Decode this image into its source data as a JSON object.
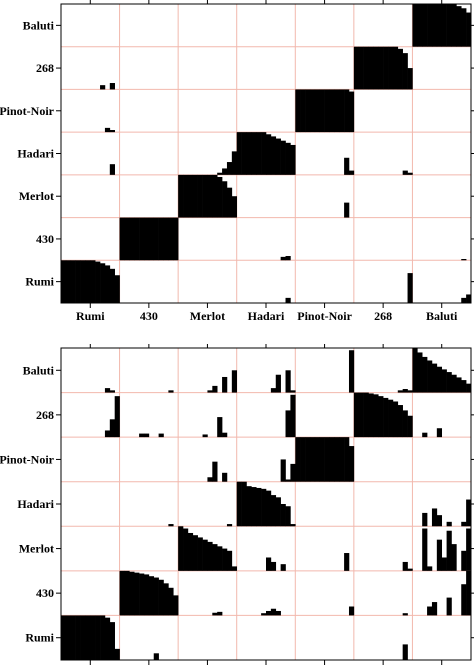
{
  "chart_data": [
    {
      "type": "heatmap",
      "title": "",
      "xlabel": "",
      "ylabel": "",
      "categories": [
        "Rumi",
        "430",
        "Merlot",
        "Hadari",
        "Pinot-Noir",
        "268",
        "Baluti"
      ],
      "grid": true,
      "bins_per_cell": 12,
      "cells": [
        {
          "row": "Rumi",
          "col": "Rumi",
          "values": [
            1,
            1,
            1,
            1,
            1,
            1,
            1,
            0.97,
            0.93,
            0.88,
            0.8,
            0.65
          ]
        },
        {
          "row": "Rumi",
          "col": "Hadari",
          "values": [
            0,
            0,
            0,
            0,
            0,
            0,
            0,
            0,
            0,
            0,
            0.12,
            0
          ]
        },
        {
          "row": "Rumi",
          "col": "Baluti",
          "values": [
            0,
            0,
            0,
            0,
            0,
            0,
            0,
            0,
            0,
            0,
            0.12,
            0.2
          ]
        },
        {
          "row": "Rumi",
          "col": "268",
          "values": [
            0,
            0,
            0,
            0,
            0,
            0,
            0,
            0,
            0,
            0,
            0,
            0.7
          ]
        },
        {
          "row": "430",
          "col": "430",
          "values": [
            1,
            1,
            1,
            1,
            1,
            1,
            1,
            1,
            1,
            1,
            1,
            1
          ]
        },
        {
          "row": "430",
          "col": "Hadari",
          "values": [
            0,
            0,
            0,
            0,
            0,
            0,
            0,
            0,
            0,
            0.08,
            0.1,
            0
          ]
        },
        {
          "row": "430",
          "col": "Baluti",
          "values": [
            0,
            0,
            0,
            0,
            0,
            0,
            0,
            0,
            0,
            0,
            0.03,
            0
          ]
        },
        {
          "row": "Merlot",
          "col": "Merlot",
          "values": [
            1,
            1,
            1,
            1,
            1,
            1,
            1,
            1,
            0.95,
            0.85,
            0.7,
            0.5
          ]
        },
        {
          "row": "Merlot",
          "col": "Pinot-Noir",
          "values": [
            0,
            0,
            0,
            0,
            0,
            0,
            0,
            0,
            0,
            0,
            0.35,
            0
          ]
        },
        {
          "row": "Hadari",
          "col": "Hadari",
          "values": [
            1,
            1,
            1,
            1,
            1,
            1,
            0.95,
            0.9,
            0.85,
            0.8,
            0.75,
            0.7
          ]
        },
        {
          "row": "Hadari",
          "col": "Merlot",
          "values": [
            0,
            0,
            0,
            0,
            0,
            0,
            0,
            0,
            0.05,
            0.15,
            0.3,
            0.55
          ]
        },
        {
          "row": "Hadari",
          "col": "Rumi",
          "values": [
            0,
            0,
            0,
            0,
            0,
            0,
            0,
            0,
            0,
            0,
            0.25,
            0
          ]
        },
        {
          "row": "Hadari",
          "col": "Pinot-Noir",
          "values": [
            0,
            0,
            0,
            0,
            0,
            0,
            0,
            0,
            0,
            0,
            0.4,
            0.1
          ]
        },
        {
          "row": "Hadari",
          "col": "268",
          "values": [
            0,
            0,
            0,
            0,
            0,
            0,
            0,
            0,
            0,
            0,
            0.1,
            0.05
          ]
        },
        {
          "row": "Pinot-Noir",
          "col": "Pinot-Noir",
          "values": [
            1,
            1,
            1,
            1,
            1,
            1,
            1,
            1,
            1,
            1,
            1,
            0.95
          ]
        },
        {
          "row": "Pinot-Noir",
          "col": "Rumi",
          "values": [
            0,
            0,
            0,
            0,
            0,
            0,
            0,
            0,
            0,
            0.1,
            0.05,
            0
          ]
        },
        {
          "row": "268",
          "col": "268",
          "values": [
            1,
            1,
            1,
            1,
            1,
            1,
            1,
            1,
            1,
            0.95,
            0.85,
            0.5
          ]
        },
        {
          "row": "268",
          "col": "Rumi",
          "values": [
            0,
            0,
            0,
            0,
            0,
            0,
            0,
            0,
            0.1,
            0,
            0.15,
            0
          ]
        },
        {
          "row": "Baluti",
          "col": "Baluti",
          "values": [
            1,
            1,
            1,
            1,
            1,
            1,
            1,
            1,
            1,
            0.95,
            0.9,
            0.8
          ]
        }
      ]
    },
    {
      "type": "heatmap",
      "title": "",
      "xlabel": "",
      "ylabel": "",
      "categories": [
        "Rumi",
        "430",
        "Merlot",
        "Hadari",
        "Pinot-Noir",
        "268",
        "Baluti"
      ],
      "grid": true,
      "bins_per_cell": 12,
      "cells": [
        {
          "row": "Rumi",
          "col": "Rumi",
          "values": [
            1,
            1,
            1,
            1,
            1,
            1,
            1,
            1,
            1,
            0.95,
            0.85,
            0.25
          ]
        },
        {
          "row": "Rumi",
          "col": "430",
          "values": [
            0,
            0,
            0,
            0,
            0,
            0,
            0,
            0.15,
            0,
            0,
            0,
            0
          ]
        },
        {
          "row": "Rumi",
          "col": "268",
          "values": [
            0,
            0,
            0,
            0,
            0,
            0,
            0,
            0,
            0,
            0,
            0.35,
            0
          ]
        },
        {
          "row": "430",
          "col": "430",
          "values": [
            1,
            1,
            0.98,
            0.96,
            0.94,
            0.92,
            0.88,
            0.85,
            0.8,
            0.72,
            0.62,
            0.45
          ]
        },
        {
          "row": "430",
          "col": "Merlot",
          "values": [
            0,
            0,
            0,
            0,
            0,
            0,
            0,
            0.06,
            0.08,
            0,
            0,
            0
          ]
        },
        {
          "row": "430",
          "col": "Hadari",
          "values": [
            0,
            0,
            0,
            0,
            0,
            0.05,
            0.1,
            0.15,
            0.1,
            0,
            0,
            0
          ]
        },
        {
          "row": "430",
          "col": "Pinot-Noir",
          "values": [
            0,
            0,
            0,
            0,
            0,
            0,
            0,
            0,
            0,
            0,
            0,
            0.2
          ]
        },
        {
          "row": "430",
          "col": "268",
          "values": [
            0,
            0,
            0,
            0,
            0,
            0,
            0,
            0,
            0,
            0,
            0.05,
            0
          ]
        },
        {
          "row": "430",
          "col": "Baluti",
          "values": [
            0,
            0,
            0,
            0.2,
            0.3,
            0,
            0,
            0.4,
            0,
            0,
            0.7,
            1
          ]
        },
        {
          "row": "Merlot",
          "col": "Merlot",
          "values": [
            1,
            0.95,
            0.85,
            0.8,
            0.75,
            0.7,
            0.65,
            0.6,
            0.55,
            0.5,
            0.45,
            0.1
          ]
        },
        {
          "row": "Merlot",
          "col": "Hadari",
          "values": [
            0,
            0,
            0,
            0,
            0,
            0,
            0.3,
            0.2,
            0,
            0.15,
            0,
            0
          ]
        },
        {
          "row": "Merlot",
          "col": "Pinot-Noir",
          "values": [
            0,
            0,
            0,
            0,
            0,
            0,
            0,
            0,
            0,
            0,
            0.4,
            0
          ]
        },
        {
          "row": "Merlot",
          "col": "268",
          "values": [
            0,
            0,
            0,
            0,
            0,
            0,
            0,
            0,
            0,
            0,
            0.2,
            0.05
          ]
        },
        {
          "row": "Merlot",
          "col": "Baluti",
          "values": [
            0,
            0,
            0.95,
            0.1,
            0,
            0.7,
            0.3,
            0.9,
            0.6,
            0,
            0.45,
            0.95
          ]
        },
        {
          "row": "Hadari",
          "col": "Hadari",
          "values": [
            1,
            1,
            0.9,
            0.88,
            0.86,
            0.84,
            0.8,
            0.7,
            0.65,
            0.5,
            0.45,
            0.05
          ]
        },
        {
          "row": "Hadari",
          "col": "430",
          "values": [
            0,
            0,
            0,
            0,
            0,
            0,
            0,
            0,
            0,
            0,
            0.05,
            0
          ]
        },
        {
          "row": "Hadari",
          "col": "Merlot",
          "values": [
            0,
            0,
            0,
            0,
            0,
            0,
            0,
            0,
            0,
            0,
            0.05,
            0
          ]
        },
        {
          "row": "Hadari",
          "col": "Baluti",
          "values": [
            0,
            0,
            0.3,
            0,
            0.4,
            0.25,
            0,
            0.1,
            0,
            0,
            0.1,
            0.6
          ]
        },
        {
          "row": "Pinot-Noir",
          "col": "Pinot-Noir",
          "values": [
            1,
            1,
            1,
            1,
            1,
            1,
            1,
            1,
            1,
            1,
            1,
            0.8
          ]
        },
        {
          "row": "Pinot-Noir",
          "col": "Merlot",
          "values": [
            0,
            0,
            0,
            0,
            0,
            0,
            0.1,
            0.45,
            0,
            0.2,
            0,
            0
          ]
        },
        {
          "row": "Pinot-Noir",
          "col": "Hadari",
          "values": [
            0,
            0,
            0,
            0,
            0,
            0,
            0,
            0,
            0,
            0.5,
            0.05,
            0.4
          ]
        },
        {
          "row": "268",
          "col": "268",
          "values": [
            1,
            1,
            1,
            0.98,
            0.96,
            0.92,
            0.88,
            0.84,
            0.8,
            0.72,
            0.6,
            0.48
          ]
        },
        {
          "row": "268",
          "col": "Rumi",
          "values": [
            0,
            0,
            0,
            0,
            0,
            0,
            0,
            0,
            0,
            0.15,
            0.4,
            0.92
          ]
        },
        {
          "row": "268",
          "col": "430",
          "values": [
            0,
            0,
            0,
            0,
            0.08,
            0.08,
            0,
            0,
            0.08,
            0,
            0,
            0
          ]
        },
        {
          "row": "268",
          "col": "Merlot",
          "values": [
            0,
            0,
            0,
            0,
            0,
            0.06,
            0,
            0,
            0.45,
            0.1,
            0,
            0
          ]
        },
        {
          "row": "268",
          "col": "Hadari",
          "values": [
            0,
            0,
            0,
            0,
            0,
            0,
            0,
            0,
            0,
            0,
            0.6,
            0.95
          ]
        },
        {
          "row": "268",
          "col": "Baluti",
          "values": [
            0,
            0,
            0.1,
            0,
            0,
            0.2,
            0,
            0,
            0,
            0,
            0,
            0
          ]
        },
        {
          "row": "Baluti",
          "col": "Baluti",
          "values": [
            1,
            0.9,
            0.8,
            0.72,
            0.65,
            0.58,
            0.52,
            0.46,
            0.4,
            0.34,
            0.28,
            0.2
          ]
        },
        {
          "row": "Baluti",
          "col": "Rumi",
          "values": [
            0,
            0,
            0,
            0,
            0,
            0,
            0,
            0,
            0,
            0.1,
            0.05,
            0
          ]
        },
        {
          "row": "Baluti",
          "col": "430",
          "values": [
            0,
            0,
            0,
            0,
            0,
            0,
            0,
            0,
            0,
            0,
            0.05,
            0
          ]
        },
        {
          "row": "Baluti",
          "col": "Merlot",
          "values": [
            0,
            0,
            0,
            0,
            0,
            0,
            0.05,
            0.15,
            0,
            0.35,
            0,
            0.5
          ]
        },
        {
          "row": "Baluti",
          "col": "Hadari",
          "values": [
            0,
            0,
            0,
            0,
            0,
            0,
            0,
            0.1,
            0.4,
            0,
            0.5,
            0.05
          ]
        },
        {
          "row": "Baluti",
          "col": "Pinot-Noir",
          "values": [
            0,
            0,
            0,
            0,
            0,
            0,
            0,
            0,
            0,
            0,
            0,
            0.95
          ]
        },
        {
          "row": "Baluti",
          "col": "268",
          "values": [
            0,
            0,
            0,
            0,
            0,
            0,
            0,
            0,
            0,
            0.05,
            0.08,
            0.05
          ]
        }
      ]
    }
  ]
}
